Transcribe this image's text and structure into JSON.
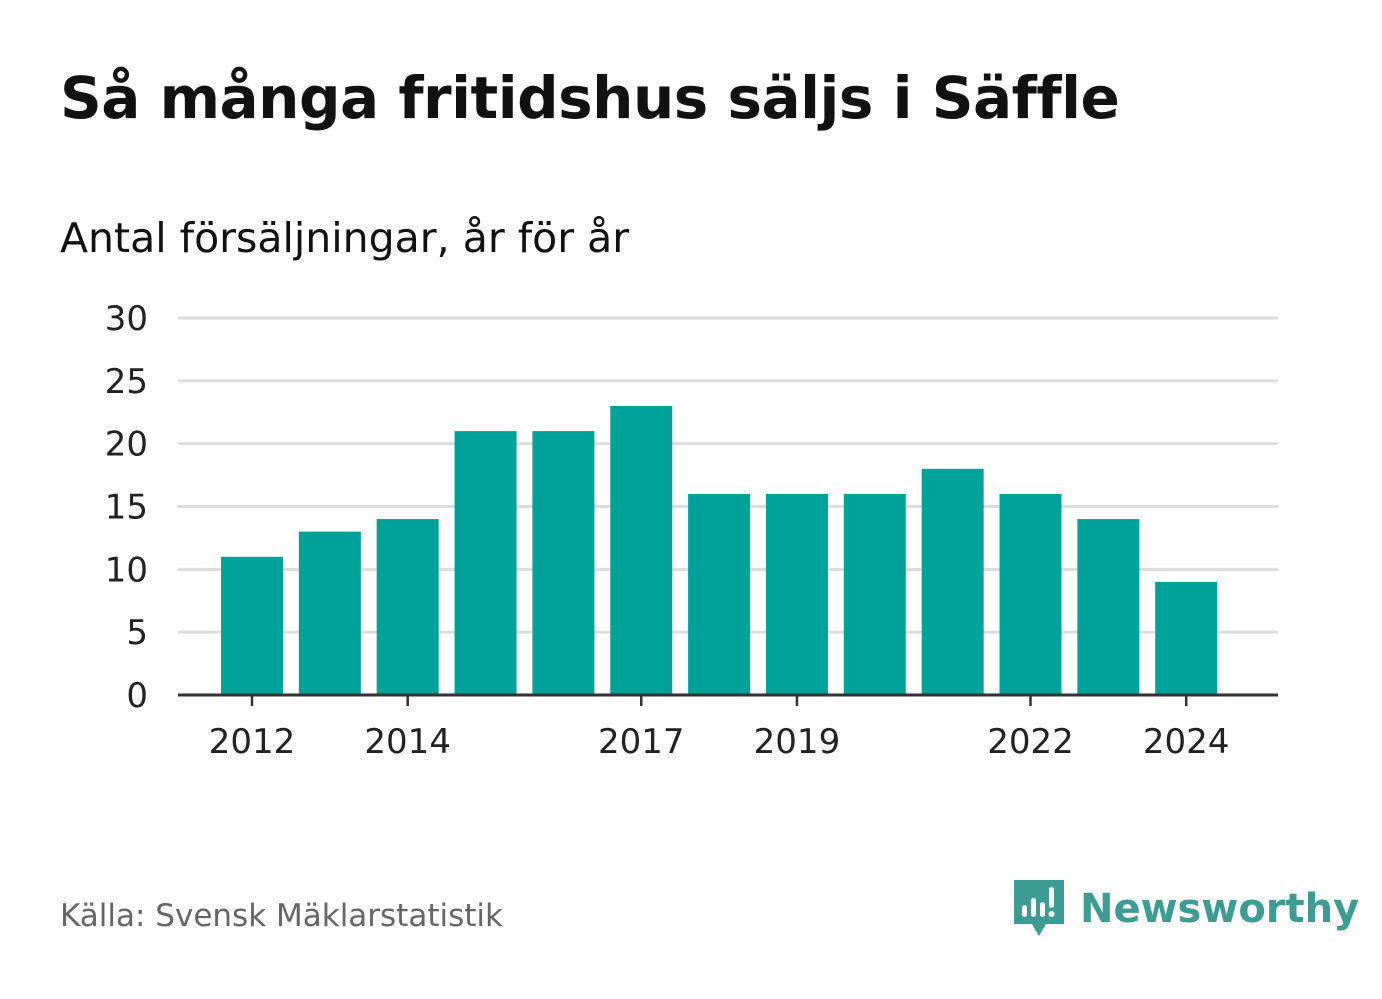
{
  "title": "Så många fritidshus säljs i Säffle",
  "subtitle": "Antal försäljningar, år för år",
  "source": "Källa: Svensk Mäklarstatistik",
  "brand": {
    "name": "Newsworthy",
    "icon": "newsworthy-logo-icon",
    "color": "#3d9c94"
  },
  "colors": {
    "bar": "#00a39a",
    "grid": "#dddddd",
    "axis": "#333333"
  },
  "chart_data": {
    "type": "bar",
    "categories": [
      "2012",
      "2013",
      "2014",
      "2015",
      "2016",
      "2017",
      "2018",
      "2019",
      "2020",
      "2021",
      "2022",
      "2023",
      "2024"
    ],
    "values": [
      11,
      13,
      14,
      21,
      21,
      23,
      16,
      16,
      16,
      18,
      16,
      14,
      9
    ],
    "x_tick_labels": [
      "2012",
      "2014",
      "2017",
      "2019",
      "2022",
      "2024"
    ],
    "y_ticks": [
      0,
      5,
      10,
      15,
      20,
      25,
      30
    ],
    "ylim": [
      0,
      30
    ],
    "grid": true,
    "title": "Så många fritidshus säljs i Säffle",
    "subtitle": "Antal försäljningar, år för år",
    "xlabel": "",
    "ylabel": ""
  }
}
